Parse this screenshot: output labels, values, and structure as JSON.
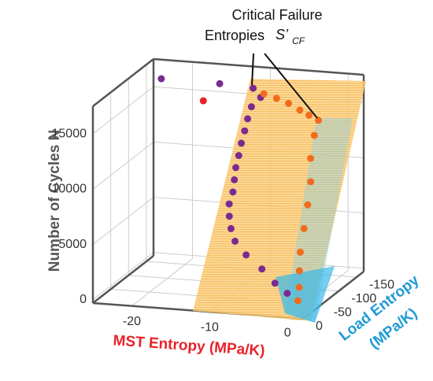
{
  "chart_data": {
    "type": "scatter",
    "annotation": {
      "line1": "Critical Failure",
      "line2": "Entropies",
      "symbol": "S’",
      "subscript": "CF"
    },
    "xlabel": "MST Entropy (MPa/K)",
    "ylabel": [
      "Load Entropy",
      "(MPa/K)"
    ],
    "zlabel": "Number of Cycles N",
    "xlim": [
      -25,
      2
    ],
    "ylim": [
      -170,
      0
    ],
    "zlim": [
      -300,
      17500
    ],
    "xticks": [
      -20,
      -10,
      0
    ],
    "yticks": [
      0,
      -50,
      -100,
      -150
    ],
    "zticks": [
      0,
      5000,
      10000,
      15000
    ],
    "grid": true,
    "series": [
      {
        "color": "#7b2a90",
        "x": [
          -10.6,
          -9.5,
          -10.5,
          -10.8,
          -11,
          -11.2,
          -11.3,
          -11.5,
          -11.5,
          -11.5,
          -11.8,
          -11.6,
          -11.2,
          -10.5,
          -8.8,
          -6.5,
          -4.5,
          -2.7
        ],
        "y": [
          -135,
          -132,
          -128,
          -124,
          -120,
          -115,
          -110,
          -106,
          -102,
          -98,
          -94,
          -90,
          -86,
          -82,
          -76,
          -70,
          -63,
          -58
        ],
        "z": [
          16500,
          15800,
          15000,
          14000,
          13000,
          12000,
          11000,
          10000,
          9000,
          8000,
          7000,
          6000,
          5000,
          4000,
          3000,
          2000,
          1000,
          300
        ]
      },
      {
        "color": "#f26b1d",
        "x": [
          -9,
          -7,
          -5,
          -3,
          -1.5,
          -0.1,
          -0.5,
          -0.8,
          -0.6,
          -0.8,
          -1,
          -1.2,
          -1,
          -0.7,
          -0.5
        ],
        "y": [
          -130,
          -122,
          -112,
          -100,
          -93,
          -89,
          -86,
          -82,
          -78,
          -74,
          -68,
          -62,
          -55,
          -48,
          -40
        ],
        "z": [
          16200,
          16100,
          16000,
          15800,
          15600,
          15300,
          14000,
          12000,
          10000,
          8000,
          6000,
          4000,
          2500,
          1200,
          200
        ]
      },
      {
        "color": "#7b2a90",
        "x": [
          -24,
          -16.5
        ],
        "y": [
          -170,
          -170
        ],
        "z": [
          15770,
          15720
        ]
      },
      {
        "color": "#e8232a",
        "x": [
          -18.6
        ],
        "y": [
          -170
        ],
        "z": [
          14060
        ]
      }
    ]
  }
}
